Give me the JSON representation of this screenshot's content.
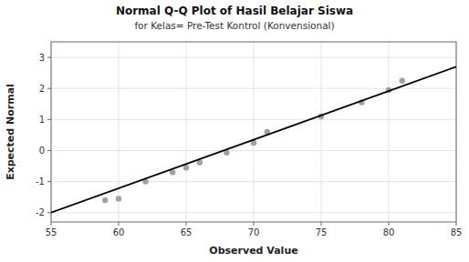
{
  "chart_data": {
    "type": "scatter",
    "title": "Normal Q-Q Plot of Hasil Belajar Siswa",
    "subtitle": "for Kelas= Pre-Test Kontrol (Konvensional)",
    "xlabel": "Observed Value",
    "ylabel": "Expected Normal",
    "xlim": [
      55,
      85
    ],
    "ylim": [
      -2.3,
      3.5
    ],
    "xticks": [
      55,
      60,
      65,
      70,
      75,
      80,
      85
    ],
    "yticks": [
      -2,
      -1,
      0,
      1,
      2,
      3
    ],
    "grid": true,
    "series": [
      {
        "type": "scatter",
        "marker": "circle",
        "color": "#a0a0a0",
        "x": [
          59,
          60,
          62,
          64,
          65,
          66,
          68,
          70,
          71,
          75,
          78,
          80,
          81
        ],
        "values": [
          -1.6,
          -1.55,
          -1.0,
          -0.7,
          -0.55,
          -0.38,
          -0.07,
          0.25,
          0.6,
          1.1,
          1.55,
          1.95,
          2.25
        ]
      },
      {
        "type": "line",
        "line_style": "solid",
        "color": "#000000",
        "x": [
          55,
          85
        ],
        "values": [
          -2.0,
          2.7
        ]
      }
    ]
  }
}
